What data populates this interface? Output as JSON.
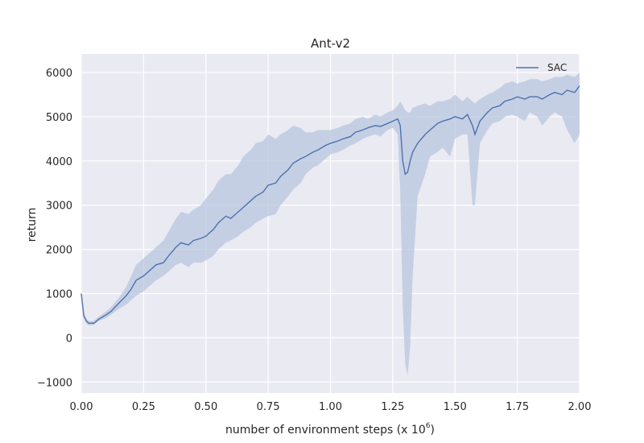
{
  "chart_data": {
    "type": "line",
    "title": "Ant-v2",
    "xlabel": "number of environment steps (x 10",
    "xlabel_sup": "6",
    "xlabel_close": ")",
    "ylabel": "return",
    "xlim": [
      0,
      2.0
    ],
    "ylim": [
      -1250,
      6420
    ],
    "grid": true,
    "legend_position": "top-right",
    "x_ticks": [
      "0.00",
      "0.25",
      "0.50",
      "0.75",
      "1.00",
      "1.25",
      "1.50",
      "1.75",
      "2.00"
    ],
    "y_ticks": [
      "−1000",
      "0",
      "1000",
      "2000",
      "3000",
      "4000",
      "5000",
      "6000"
    ],
    "colors": {
      "line": "#4c72b0",
      "band": "#b8c5df",
      "plot_bg": "#eaeaf2",
      "grid": "#ffffff"
    },
    "series": [
      {
        "name": "SAC",
        "x": [
          0.0,
          0.01,
          0.02,
          0.03,
          0.05,
          0.07,
          0.1,
          0.12,
          0.15,
          0.18,
          0.2,
          0.22,
          0.25,
          0.28,
          0.3,
          0.33,
          0.35,
          0.38,
          0.4,
          0.43,
          0.45,
          0.48,
          0.5,
          0.53,
          0.55,
          0.58,
          0.6,
          0.63,
          0.65,
          0.68,
          0.7,
          0.73,
          0.75,
          0.78,
          0.8,
          0.83,
          0.85,
          0.88,
          0.9,
          0.93,
          0.95,
          0.98,
          1.0,
          1.03,
          1.05,
          1.08,
          1.1,
          1.13,
          1.15,
          1.18,
          1.2,
          1.23,
          1.25,
          1.27,
          1.28,
          1.29,
          1.3,
          1.31,
          1.32,
          1.33,
          1.35,
          1.38,
          1.4,
          1.43,
          1.45,
          1.48,
          1.5,
          1.53,
          1.55,
          1.57,
          1.58,
          1.6,
          1.63,
          1.65,
          1.68,
          1.7,
          1.73,
          1.75,
          1.78,
          1.8,
          1.83,
          1.85,
          1.88,
          1.9,
          1.93,
          1.95,
          1.98,
          2.0
        ],
        "values": [
          1000,
          500,
          380,
          330,
          330,
          420,
          520,
          600,
          780,
          950,
          1100,
          1300,
          1400,
          1550,
          1650,
          1700,
          1850,
          2050,
          2150,
          2100,
          2200,
          2250,
          2300,
          2450,
          2600,
          2750,
          2700,
          2850,
          2950,
          3100,
          3200,
          3300,
          3450,
          3500,
          3650,
          3800,
          3950,
          4050,
          4100,
          4200,
          4250,
          4350,
          4400,
          4450,
          4500,
          4550,
          4650,
          4700,
          4750,
          4800,
          4780,
          4850,
          4900,
          4950,
          4800,
          4000,
          3700,
          3750,
          4000,
          4200,
          4400,
          4600,
          4700,
          4850,
          4900,
          4950,
          5000,
          4950,
          5050,
          4800,
          4600,
          4900,
          5100,
          5200,
          5250,
          5350,
          5400,
          5450,
          5400,
          5450,
          5450,
          5400,
          5500,
          5550,
          5500,
          5600,
          5550,
          5700
        ],
        "lower": [
          950,
          450,
          320,
          280,
          290,
          380,
          450,
          520,
          650,
          750,
          850,
          950,
          1050,
          1200,
          1300,
          1400,
          1500,
          1650,
          1700,
          1600,
          1700,
          1700,
          1750,
          1850,
          2000,
          2150,
          2200,
          2300,
          2400,
          2500,
          2600,
          2700,
          2750,
          2800,
          3000,
          3200,
          3350,
          3500,
          3700,
          3850,
          3900,
          4050,
          4150,
          4200,
          4250,
          4350,
          4400,
          4500,
          4550,
          4600,
          4550,
          4700,
          4750,
          4600,
          3300,
          700,
          -600,
          -850,
          -200,
          1400,
          3200,
          3700,
          4100,
          4200,
          4300,
          4100,
          4500,
          4600,
          4600,
          3000,
          3000,
          4400,
          4700,
          4850,
          4900,
          5000,
          5050,
          5000,
          4900,
          5100,
          5000,
          4800,
          5000,
          5100,
          5000,
          4700,
          4400,
          4600
        ],
        "upper": [
          1050,
          560,
          440,
          380,
          380,
          480,
          600,
          700,
          900,
          1150,
          1400,
          1650,
          1800,
          1950,
          2050,
          2200,
          2400,
          2700,
          2850,
          2800,
          2900,
          3000,
          3150,
          3350,
          3550,
          3700,
          3700,
          3900,
          4100,
          4250,
          4400,
          4450,
          4600,
          4500,
          4600,
          4700,
          4800,
          4750,
          4650,
          4650,
          4700,
          4700,
          4700,
          4750,
          4800,
          4850,
          4950,
          5000,
          4950,
          5050,
          5000,
          5100,
          5150,
          5250,
          5350,
          5250,
          5150,
          5100,
          5100,
          5200,
          5250,
          5300,
          5250,
          5350,
          5350,
          5400,
          5500,
          5350,
          5450,
          5350,
          5300,
          5400,
          5500,
          5550,
          5650,
          5750,
          5800,
          5750,
          5800,
          5850,
          5850,
          5800,
          5850,
          5900,
          5900,
          5950,
          5900,
          6000
        ]
      }
    ]
  }
}
